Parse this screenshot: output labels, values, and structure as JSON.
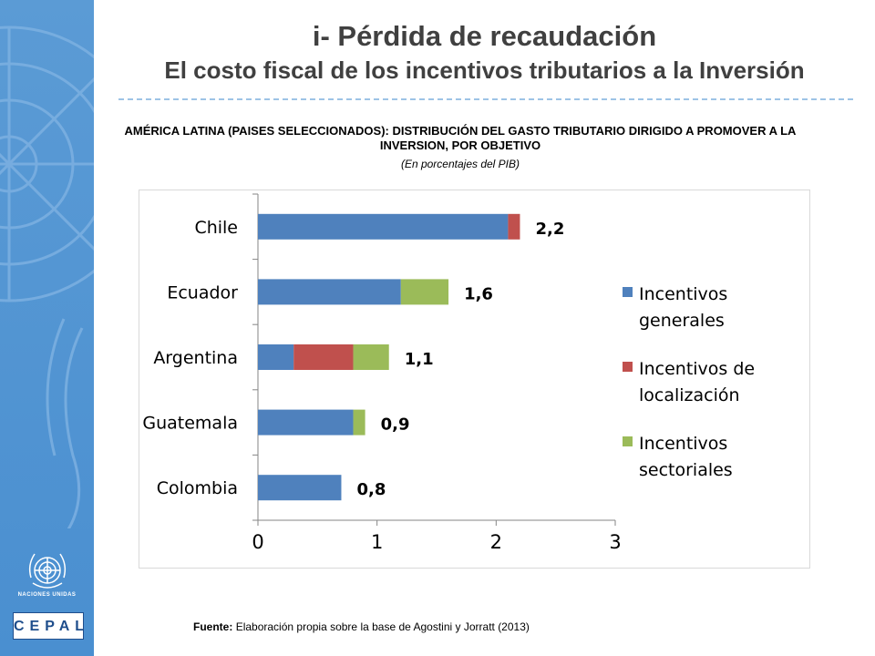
{
  "header": {
    "title": "i- Pérdida de recaudación",
    "subtitle": "El costo fiscal de los incentivos tributarios a la Inversión"
  },
  "sidebar": {
    "emblem_icon": "un-emblem-icon",
    "un_caption": "NACIONES UNIDAS",
    "logo_text": "CEPAL",
    "background_color": "#5b9bd5"
  },
  "chart_data": {
    "type": "bar",
    "orientation": "horizontal",
    "stacked": true,
    "title": "AMÉRICA LATINA (PAISES SELECCIONADOS): DISTRIBUCIÓN DEL GASTO TRIBUTARIO DIRIGIDO A PROMOVER A LA INVERSION, POR OBJETIVO",
    "subtitle": "(En porcentajes del PIB)",
    "categories": [
      "Chile",
      "Ecuador",
      "Argentina",
      "Guatemala",
      "Colombia"
    ],
    "series": [
      {
        "name": "Incentivos generales",
        "color": "#4f81bd",
        "values": [
          2.1,
          1.2,
          0.3,
          0.8,
          0.7
        ]
      },
      {
        "name": "Incentivos de localización",
        "color": "#c0504d",
        "values": [
          0.1,
          0.0,
          0.5,
          0.0,
          0.0
        ]
      },
      {
        "name": "Incentivos sectoriales",
        "color": "#9bbb59",
        "values": [
          0.0,
          0.4,
          0.3,
          0.1,
          0.0
        ]
      }
    ],
    "totals": [
      "2,2",
      "1,6",
      "1,1",
      "0,9",
      "0,8"
    ],
    "xlim": [
      0,
      3
    ],
    "xticks": [
      "0",
      "1",
      "2",
      "3"
    ],
    "legend_position": "right",
    "grid": false
  },
  "footnote": {
    "label": "Fuente:",
    "text": "Elaboración propia sobre la base de Agostini y Jorratt (2013)"
  }
}
